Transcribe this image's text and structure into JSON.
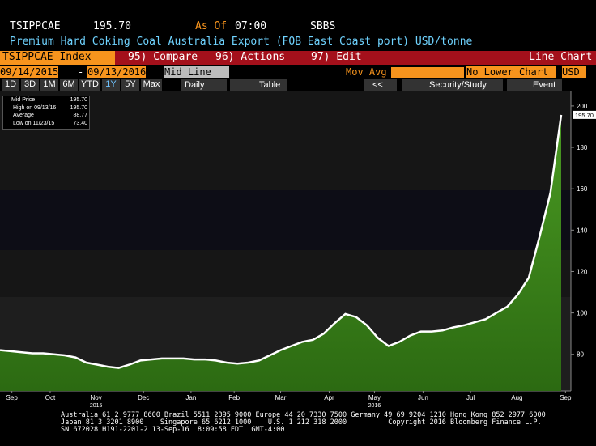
{
  "header": {
    "ticker": "TSIPPCAE",
    "price": "195.70",
    "as_of": "As Of",
    "time": "07:00",
    "source": "SBBS",
    "description": "Premium Hard Coking Coal Australia Export (FOB East Coast port) USD/tonne"
  },
  "toolbar": {
    "security": "TSIPPCAE Index",
    "compare": "95) Compare",
    "actions": "96) Actions",
    "edit": "97) Edit",
    "chart_type": "Line Chart"
  },
  "range": {
    "start": "09/14/2015",
    "sep": "-",
    "end": "09/13/2016",
    "line": "Mid Line",
    "mov_avg": "Mov Avg",
    "lower": "No Lower Chart",
    "currency": "USD"
  },
  "periods": [
    "1D",
    "3D",
    "1M",
    "6M",
    "YTD",
    "1Y",
    "5Y",
    "Max"
  ],
  "active_period": 5,
  "frequency": "Daily",
  "table": "Table",
  "back": "<<",
  "study": "Security/Study",
  "event": "Event",
  "legend": [
    {
      "label": "Mid Price",
      "value": "195.70"
    },
    {
      "label": "High on 09/13/16",
      "value": "195.70"
    },
    {
      "label": "Average",
      "value": "88.77"
    },
    {
      "label": "Low on 11/23/15",
      "value": "73.40"
    }
  ],
  "chart_data": {
    "type": "area",
    "series": [
      {
        "color": "#ffffff",
        "fill": "#3f8f1e",
        "values": [
          82,
          81.5,
          81,
          80.5,
          80.5,
          80,
          79.5,
          78.5,
          76,
          75,
          74,
          73.4,
          75,
          77,
          77.5,
          78,
          78,
          78,
          77.5,
          77.5,
          77,
          76,
          75.5,
          76,
          77,
          79.5,
          82,
          84,
          86,
          87,
          90,
          95,
          99.5,
          98,
          94,
          88,
          84,
          86,
          89,
          91,
          91,
          91.5,
          93,
          94,
          95.5,
          97,
          100,
          103,
          109,
          117,
          137,
          158,
          195.7
        ]
      }
    ],
    "xlim": [
      0,
      52.9
    ],
    "xticks": [
      {
        "value": 1.1,
        "label": "Sep"
      },
      {
        "value": 4.65,
        "label": "Oct"
      },
      {
        "value": 8.9,
        "label": "Nov"
      },
      {
        "value": 13.3,
        "label": "Dec"
      },
      {
        "value": 17.7,
        "label": "Jan"
      },
      {
        "value": 21.7,
        "label": "Feb"
      },
      {
        "value": 26.0,
        "label": "Mar"
      },
      {
        "value": 30.5,
        "label": "Apr"
      },
      {
        "value": 34.7,
        "label": "May"
      },
      {
        "value": 39.2,
        "label": "Jun"
      },
      {
        "value": 43.6,
        "label": "Jul"
      },
      {
        "value": 47.9,
        "label": "Aug"
      },
      {
        "value": 52.4,
        "label": "Sep"
      }
    ],
    "year_labels": [
      {
        "value": 8.9,
        "label": "2015"
      },
      {
        "value": 34.7,
        "label": "2016"
      }
    ],
    "ylim": [
      62.3,
      207
    ],
    "yticks": [
      80,
      100,
      120,
      140,
      160,
      180,
      200
    ],
    "price_tag": {
      "value": 195.7,
      "label": "195.70"
    }
  },
  "footer": [
    "Australia 61 2 9777 8600 Brazil 5511 2395 9000 Europe 44 20 7330 7500 Germany 49 69 9204 1210 Hong Kong 852 2977 6000",
    "Japan 81 3 3201 8900    Singapore 65 6212 1000    U.S. 1 212 318 2000          Copyright 2016 Bloomberg Finance L.P.",
    "SN 672028 H191-2201-2 13-Sep-16  8:09:58 EDT  GMT-4:00"
  ]
}
